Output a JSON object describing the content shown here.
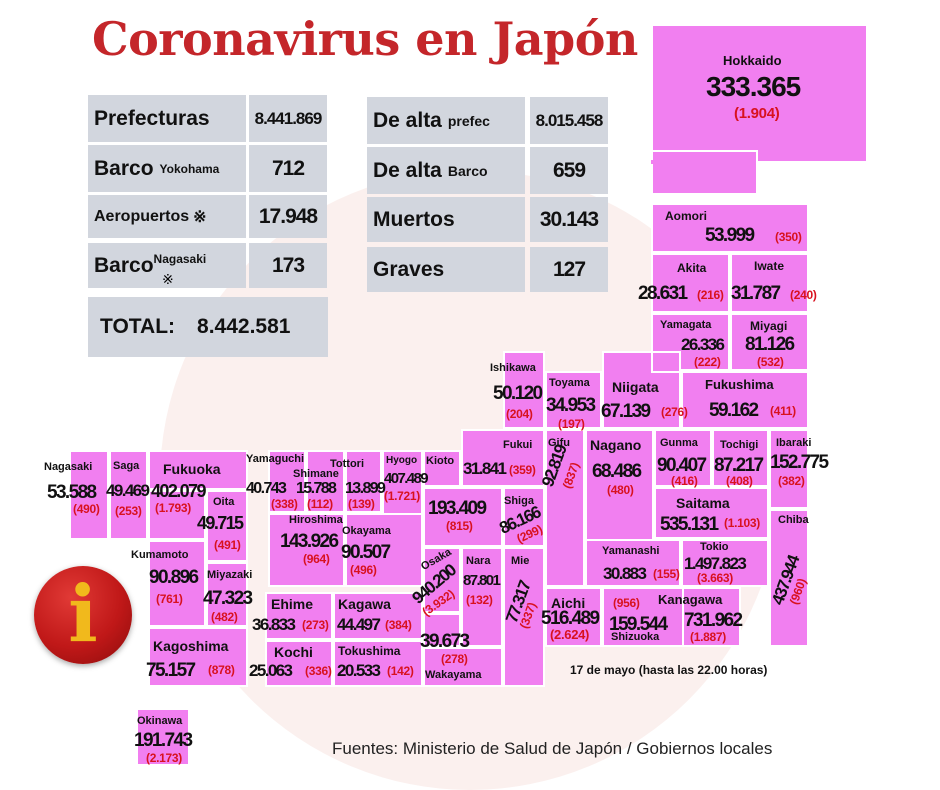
{
  "title": "Coronavirus en Japón",
  "summary": {
    "prefecturas": {
      "label": "Prefecturas",
      "value": "8.441.869"
    },
    "barco_yokohama": {
      "label": "Barco",
      "sub": "Yokohama",
      "value": "712"
    },
    "aeropuertos": {
      "label": "Aeropuertos",
      "marker": "※",
      "value": "17.948"
    },
    "barco_nagasaki": {
      "label": "Barco",
      "marker": "※",
      "sub": "Nagasaki",
      "value": "173"
    },
    "total": {
      "label": "TOTAL:",
      "value": "8.442.581"
    },
    "de_alta_prefec": {
      "label": "De alta",
      "sub": "prefec",
      "value": "8.015.458"
    },
    "de_alta_barco": {
      "label": "De alta",
      "sub": "Barco",
      "value": "659"
    },
    "muertos": {
      "label": "Muertos",
      "value": "30.143"
    },
    "graves": {
      "label": "Graves",
      "value": "127"
    }
  },
  "prefectures": [
    {
      "name": "Hokkaido",
      "cases": "333.365",
      "deaths": "(1.904)"
    },
    {
      "name": "Aomori",
      "cases": "53.999",
      "deaths": "(350)"
    },
    {
      "name": "Akita",
      "cases": "28.631",
      "deaths": "(216)"
    },
    {
      "name": "Iwate",
      "cases": "31.787",
      "deaths": "(240)"
    },
    {
      "name": "Yamagata",
      "cases": "26.336",
      "deaths": "(222)"
    },
    {
      "name": "Miyagi",
      "cases": "81.126",
      "deaths": "(532)"
    },
    {
      "name": "Fukushima",
      "cases": "59.162",
      "deaths": "(411)"
    },
    {
      "name": "Niigata",
      "cases": "67.139",
      "deaths": "(276)"
    },
    {
      "name": "Toyama",
      "cases": "34.953",
      "deaths": "(197)"
    },
    {
      "name": "Ishikawa",
      "cases": "50.120",
      "deaths": "(204)"
    },
    {
      "name": "Fukui",
      "cases": "31.841",
      "deaths": "(359)"
    },
    {
      "name": "Gifu",
      "cases": "92.819",
      "deaths": "(837)"
    },
    {
      "name": "Nagano",
      "cases": "68.486",
      "deaths": "(480)"
    },
    {
      "name": "Gunma",
      "cases": "90.407",
      "deaths": "(416)"
    },
    {
      "name": "Tochigi",
      "cases": "87.217",
      "deaths": "(408)"
    },
    {
      "name": "Ibaraki",
      "cases": "152.775",
      "deaths": "(382)"
    },
    {
      "name": "Saitama",
      "cases": "535.131",
      "deaths": "(1.103)"
    },
    {
      "name": "Chiba",
      "cases": "437.944",
      "deaths": "(960)"
    },
    {
      "name": "Tokio",
      "cases": "1.497.823",
      "deaths": "(3.663)"
    },
    {
      "name": "Yamanashi",
      "cases": "30.883",
      "deaths": "(155)"
    },
    {
      "name": "Kanagawa",
      "cases": "731.962",
      "deaths": "(1.887)"
    },
    {
      "name": "Shizuoka",
      "cases": "159.544",
      "deaths": "(956)"
    },
    {
      "name": "Aichi",
      "cases": "516.489",
      "deaths": "(2.624)"
    },
    {
      "name": "Mie",
      "cases": "77.317",
      "deaths": "(337)"
    },
    {
      "name": "Shiga",
      "cases": "86.166",
      "deaths": "(299)"
    },
    {
      "name": "Kioto",
      "cases": "193.409",
      "deaths": "(815)"
    },
    {
      "name": "Nara",
      "cases": "87.801",
      "deaths": "(132)"
    },
    {
      "name": "Osaka",
      "cases": "940.200",
      "deaths": "(3.932)"
    },
    {
      "name": "Wakayama",
      "cases": "39.673",
      "deaths": "(278)"
    },
    {
      "name": "Hyogo",
      "cases": "407.489",
      "deaths": "(1.721)"
    },
    {
      "name": "Tottori",
      "cases": "13.899",
      "deaths": "(139)"
    },
    {
      "name": "Shimane",
      "cases": "15.788",
      "deaths": "(112)"
    },
    {
      "name": "Okayama",
      "cases": "90.507",
      "deaths": "(496)"
    },
    {
      "name": "Hiroshima",
      "cases": "143.926",
      "deaths": "(964)"
    },
    {
      "name": "Yamaguchi",
      "cases": "40.743",
      "deaths": "(338)"
    },
    {
      "name": "Kagawa",
      "cases": "44.497",
      "deaths": "(384)"
    },
    {
      "name": "Tokushima",
      "cases": "20.533",
      "deaths": "(142)"
    },
    {
      "name": "Ehime",
      "cases": "36.833",
      "deaths": "(273)"
    },
    {
      "name": "Kochi",
      "cases": "25.063",
      "deaths": "(336)"
    },
    {
      "name": "Fukuoka",
      "cases": "402.079",
      "deaths": "(1.793)"
    },
    {
      "name": "Saga",
      "cases": "49.469",
      "deaths": "(253)"
    },
    {
      "name": "Nagasaki",
      "cases": "53.588",
      "deaths": "(490)"
    },
    {
      "name": "Oita",
      "cases": "49.715",
      "deaths": "(491)"
    },
    {
      "name": "Kumamoto",
      "cases": "90.896",
      "deaths": "(761)"
    },
    {
      "name": "Miyazaki",
      "cases": "47.323",
      "deaths": "(482)"
    },
    {
      "name": "Kagoshima",
      "cases": "75.157",
      "deaths": "(878)"
    },
    {
      "name": "Okinawa",
      "cases": "191.743",
      "deaths": "(2.173)"
    }
  ],
  "info_icon": {
    "icon": "info-icon",
    "glyph": "i",
    "color": "#c01818",
    "glyph_color": "#f1b91c"
  },
  "colors": {
    "prefecture": "#f17ff0",
    "deaths": "#d8121f",
    "title": "#c4262a",
    "summary_box": "#d2d6de"
  },
  "date_note": "17 de mayo  (hasta las  22.00 horas)",
  "source": "Fuentes: Ministerio de Salud de Japón / Gobiernos locales"
}
